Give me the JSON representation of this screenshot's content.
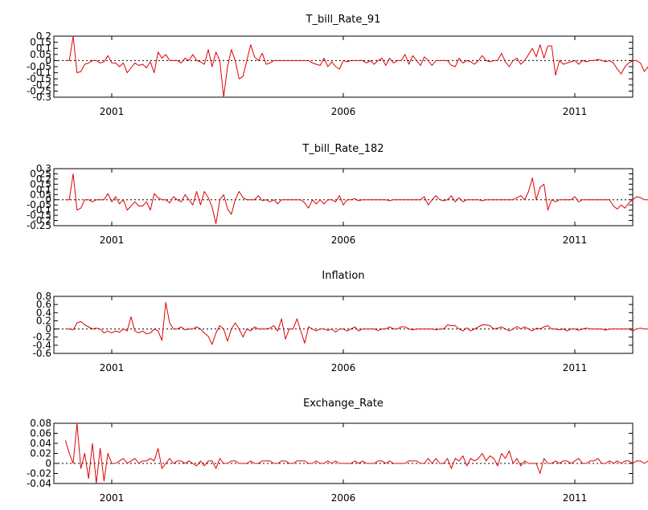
{
  "colors": {
    "series": "#e00000",
    "axis": "#000000",
    "background": "#ffffff"
  },
  "chart_data": [
    {
      "type": "line",
      "title": "T_bill_Rate_91",
      "x_ticks": [
        "2001",
        "2006",
        "2011"
      ],
      "y_ticks": [
        "0.2",
        "0.15",
        "0.1",
        "0.05",
        "0",
        "-0.05",
        "-0.1",
        "-0.15",
        "-0.2",
        "-0.25",
        "-0.3"
      ],
      "ylim": [
        -0.3,
        0.2
      ],
      "xlim": [
        1999.75,
        2012.25
      ],
      "zero_line": true,
      "x_start": 2000.0,
      "x_step": 0.08333,
      "values": [
        0.0,
        0.0,
        0.2,
        -0.1,
        -0.09,
        -0.03,
        -0.02,
        0.0,
        0.0,
        -0.02,
        -0.01,
        0.04,
        -0.02,
        -0.02,
        -0.05,
        -0.02,
        -0.1,
        -0.06,
        -0.02,
        -0.04,
        -0.03,
        -0.06,
        -0.01,
        -0.1,
        0.07,
        0.02,
        0.05,
        0.0,
        0.0,
        0.0,
        -0.02,
        0.02,
        0.0,
        0.05,
        0.0,
        -0.01,
        -0.03,
        0.09,
        -0.05,
        0.07,
        0.0,
        -0.3,
        -0.05,
        0.09,
        0.0,
        -0.15,
        -0.13,
        0.0,
        0.13,
        0.03,
        0.0,
        0.06,
        -0.03,
        -0.02,
        0.0,
        0.0,
        0.0,
        0.0,
        0.0,
        0.0,
        0.0,
        0.0,
        0.0,
        0.0,
        -0.02,
        -0.03,
        -0.04,
        0.02,
        -0.05,
        -0.01,
        -0.05,
        -0.07,
        0.0,
        -0.01,
        0.0,
        0.0,
        0.0,
        0.0,
        -0.02,
        0.0,
        -0.03,
        0.0,
        0.02,
        -0.04,
        0.02,
        -0.02,
        0.0,
        0.0,
        0.05,
        -0.03,
        0.04,
        0.0,
        -0.04,
        0.03,
        0.0,
        -0.04,
        0.0,
        0.0,
        0.0,
        0.0,
        -0.04,
        -0.05,
        0.02,
        -0.02,
        0.0,
        -0.01,
        -0.03,
        0.0,
        0.04,
        0.0,
        -0.01,
        0.0,
        0.0,
        0.06,
        -0.01,
        -0.05,
        0.0,
        0.02,
        -0.03,
        0.0,
        0.05,
        0.1,
        0.03,
        0.13,
        0.02,
        0.12,
        0.12,
        -0.12,
        0.0,
        -0.03,
        -0.02,
        -0.01,
        0.0,
        -0.03,
        0.0,
        -0.01,
        0.0,
        0.0,
        0.01,
        0.0,
        -0.01,
        0.0,
        -0.02,
        -0.07,
        -0.11,
        -0.05,
        -0.02,
        0.0,
        0.0,
        -0.02,
        -0.09,
        -0.05,
        0.02,
        -0.02,
        0.02,
        0.0,
        0.0,
        0.0,
        -0.01,
        0.0,
        -0.02,
        0.0,
        0.0,
        -0.01,
        -0.01,
        0.0,
        0.0,
        -0.01,
        -0.13,
        0.05,
        -0.02,
        -0.04,
        0.05,
        0.0,
        -0.02,
        0.05,
        0.0,
        0.05,
        0.0
      ]
    },
    {
      "type": "line",
      "title": "T_bill_Rate_182",
      "x_ticks": [
        "2001",
        "2006",
        "2011"
      ],
      "y_ticks": [
        "0.3",
        "0.25",
        "0.2",
        "0.15",
        "0.1",
        "0.05",
        "0",
        "-0.05",
        "-0.1",
        "-0.15",
        "-0.2",
        "-0.25"
      ],
      "ylim": [
        -0.25,
        0.3
      ],
      "xlim": [
        1999.75,
        2012.25
      ],
      "zero_line": true,
      "x_start": 2000.0,
      "x_step": 0.08333,
      "values": [
        0.0,
        0.0,
        0.25,
        -0.1,
        -0.08,
        0.0,
        0.0,
        -0.02,
        0.0,
        0.0,
        0.0,
        0.06,
        -0.02,
        0.03,
        -0.04,
        0.0,
        -0.1,
        -0.06,
        -0.02,
        -0.06,
        -0.06,
        -0.02,
        -0.1,
        0.06,
        0.02,
        0.0,
        0.0,
        -0.03,
        0.03,
        0.0,
        -0.02,
        0.05,
        0.0,
        -0.05,
        0.08,
        -0.05,
        0.08,
        0.02,
        -0.07,
        -0.23,
        0.0,
        0.05,
        -0.09,
        -0.14,
        0.0,
        0.08,
        0.02,
        0.0,
        0.0,
        0.0,
        0.04,
        -0.01,
        0.0,
        -0.02,
        0.0,
        -0.04,
        0.0,
        0.0,
        0.0,
        0.0,
        0.0,
        0.0,
        -0.03,
        -0.08,
        0.0,
        -0.04,
        0.0,
        -0.04,
        0.0,
        0.0,
        -0.02,
        0.04,
        -0.05,
        0.0,
        0.0,
        0.01,
        -0.01,
        0.0,
        0.0,
        0.0,
        0.0,
        0.0,
        0.0,
        0.0,
        -0.01,
        0.0,
        0.0,
        0.0,
        0.0,
        0.0,
        0.0,
        0.0,
        0.0,
        0.03,
        -0.05,
        0.0,
        0.04,
        0.0,
        -0.01,
        0.0,
        0.04,
        -0.02,
        0.02,
        -0.02,
        0.0,
        0.0,
        0.0,
        0.0,
        -0.01,
        0.0,
        0.0,
        0.0,
        0.0,
        0.0,
        0.0,
        0.0,
        0.0,
        0.02,
        0.04,
        0.0,
        0.08,
        0.21,
        0.0,
        0.12,
        0.15,
        -0.1,
        0.0,
        -0.02,
        0.0,
        0.0,
        0.0,
        0.0,
        0.03,
        -0.02,
        0.0,
        0.0,
        0.0,
        0.0,
        0.0,
        0.0,
        0.0,
        0.0,
        -0.06,
        -0.09,
        -0.05,
        -0.08,
        -0.03,
        0.0,
        0.03,
        0.02,
        0.0,
        0.0,
        0.0,
        0.0,
        0.0,
        0.0,
        0.0,
        0.0,
        0.0,
        0.0,
        0.0,
        0.0,
        0.0,
        -0.05,
        0.04,
        -0.03,
        0.05,
        -0.04,
        0.0,
        0.04,
        0.0,
        0.0,
        0.0,
        0.12,
        0.05,
        -0.05
      ]
    },
    {
      "type": "line",
      "title": "Inflation",
      "x_ticks": [
        "2001",
        "2006",
        "2011"
      ],
      "y_ticks": [
        "0.8",
        "0.6",
        "0.4",
        "0.2",
        "0",
        "-0.2",
        "-0.4",
        "-0.6"
      ],
      "ylim": [
        -0.6,
        0.8
      ],
      "xlim": [
        1999.75,
        2012.25
      ],
      "zero_line": true,
      "x_start": 2000.0,
      "x_step": 0.08333,
      "values": [
        0.0,
        0.0,
        -0.02,
        0.15,
        0.18,
        0.1,
        0.05,
        0.0,
        0.02,
        0.0,
        -0.1,
        -0.05,
        -0.1,
        -0.05,
        -0.08,
        0.0,
        -0.05,
        0.3,
        -0.05,
        -0.1,
        -0.05,
        -0.12,
        -0.1,
        0.0,
        -0.05,
        -0.28,
        0.65,
        0.15,
        0.0,
        0.0,
        0.05,
        -0.02,
        0.0,
        0.0,
        0.05,
        0.0,
        -0.1,
        -0.18,
        -0.38,
        -0.1,
        0.08,
        0.0,
        -0.3,
        0.0,
        0.15,
        0.0,
        -0.2,
        0.0,
        -0.05,
        0.05,
        0.0,
        0.0,
        0.0,
        0.02,
        0.08,
        -0.05,
        0.25,
        -0.25,
        0.0,
        0.0,
        0.25,
        -0.05,
        -0.35,
        0.05,
        0.0,
        -0.05,
        0.0,
        0.0,
        -0.04,
        0.0,
        -0.08,
        0.0,
        0.0,
        -0.05,
        0.0,
        0.05,
        -0.05,
        0.0,
        0.0,
        0.0,
        0.0,
        -0.04,
        0.0,
        0.0,
        0.05,
        0.0,
        0.0,
        0.05,
        0.05,
        0.0,
        -0.02,
        0.0,
        0.0,
        0.0,
        0.0,
        0.0,
        -0.02,
        0.0,
        0.0,
        0.1,
        0.08,
        0.08,
        0.0,
        -0.05,
        0.03,
        -0.05,
        0.0,
        0.05,
        0.1,
        0.1,
        0.08,
        0.0,
        0.02,
        0.05,
        0.0,
        -0.05,
        0.0,
        0.06,
        0.0,
        0.05,
        0.0,
        -0.05,
        0.02,
        0.0,
        0.05,
        0.08,
        0.0,
        0.0,
        -0.02,
        0.0,
        -0.05,
        0.0,
        0.0,
        -0.03,
        0.0,
        0.02,
        0.0,
        0.0,
        0.0,
        0.0,
        -0.03,
        0.0,
        0.0,
        0.0,
        0.0,
        0.0,
        0.0,
        -0.05,
        0.0,
        0.02,
        0.0,
        0.0,
        0.0,
        0.0,
        0.05,
        0.0,
        0.0,
        0.0,
        0.0,
        0.0,
        0.0,
        0.0,
        0.0,
        0.0,
        0.0,
        0.0,
        0.0,
        0.0,
        0.0,
        0.0,
        0.0,
        0.0,
        0.02,
        0.0,
        0.02,
        0.0,
        0.0
      ]
    },
    {
      "type": "line",
      "title": "Exchange_Rate",
      "x_ticks": [
        "2001",
        "2006",
        "2011"
      ],
      "y_ticks": [
        "0.08",
        "0.06",
        "0.04",
        "0.02",
        "0",
        "-0.02",
        "-0.04"
      ],
      "ylim": [
        -0.04,
        0.08
      ],
      "xlim": [
        1999.75,
        2012.25
      ],
      "zero_line": true,
      "x_start": 2000.0,
      "x_step": 0.08333,
      "values": [
        0.046,
        0.02,
        0.0,
        0.08,
        -0.01,
        0.02,
        -0.03,
        0.04,
        -0.04,
        0.03,
        -0.035,
        0.02,
        0.0,
        0.0,
        0.005,
        0.01,
        0.0,
        0.005,
        0.01,
        0.0,
        0.005,
        0.005,
        0.01,
        0.005,
        0.03,
        -0.01,
        0.0,
        0.01,
        0.0,
        0.005,
        0.005,
        0.0,
        0.005,
        0.0,
        -0.005,
        0.005,
        -0.005,
        0.005,
        0.005,
        -0.01,
        0.01,
        0.0,
        0.0,
        0.005,
        0.005,
        0.0,
        0.0,
        0.0,
        0.005,
        0.0,
        0.0,
        0.005,
        0.005,
        0.005,
        0.0,
        0.0,
        0.005,
        0.005,
        0.0,
        0.0,
        0.005,
        0.005,
        0.005,
        0.0,
        0.0,
        0.005,
        0.0,
        0.0,
        0.005,
        0.0,
        0.005,
        0.0,
        0.0,
        0.0,
        0.0,
        0.005,
        0.0,
        0.005,
        0.0,
        0.0,
        0.0,
        0.005,
        0.005,
        0.0,
        0.005,
        0.0,
        0.0,
        0.0,
        0.0,
        0.005,
        0.005,
        0.005,
        0.0,
        0.0,
        0.01,
        0.0,
        0.01,
        0.0,
        0.0,
        0.01,
        -0.01,
        0.01,
        0.005,
        0.015,
        -0.005,
        0.01,
        0.005,
        0.01,
        0.02,
        0.005,
        0.015,
        0.01,
        -0.005,
        0.02,
        0.01,
        0.025,
        0.0,
        0.01,
        -0.005,
        0.005,
        0.0,
        0.0,
        0.0,
        -0.02,
        0.01,
        0.0,
        0.0,
        0.005,
        0.0,
        0.005,
        0.005,
        0.0,
        0.005,
        0.01,
        0.0,
        0.0,
        0.005,
        0.005,
        0.01,
        0.0,
        0.0,
        0.005,
        0.0,
        0.005,
        0.0,
        0.005,
        0.005,
        0.0,
        0.005,
        0.005,
        0.0,
        0.005,
        0.0,
        0.0,
        0.005,
        0.01,
        0.0,
        0.0,
        0.005,
        0.0,
        0.005,
        -0.015,
        0.0,
        0.005,
        0.0,
        0.0,
        0.005,
        0.005,
        0.0,
        0.0,
        0.0,
        0.005,
        0.005,
        0.0,
        0.0,
        0.005,
        0.02,
        0.048
      ]
    }
  ]
}
